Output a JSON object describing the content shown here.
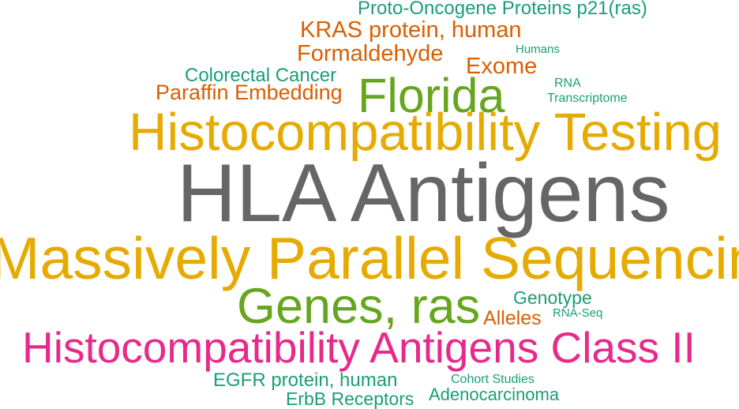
{
  "words": {
    "hla_antigens": "HLA Antigens",
    "massively_parallel_sequencing": "Massively Parallel Sequencing",
    "histocompatibility_testing": "Histocompatibility Testing",
    "histocompatibility_antigens_class_ii": "Histocompatibility Antigens Class II",
    "genes_ras": "Genes, ras",
    "florida": "Florida",
    "kras_protein_human": "KRAS protein, human",
    "formaldehyde": "Formaldehyde",
    "exome": "Exome",
    "paraffin_embedding": "Paraffin Embedding",
    "colorectal_cancer": "Colorectal Cancer",
    "proto_oncogene_proteins": "Proto-Oncogene Proteins p21(ras)",
    "alleles": "Alleles",
    "genotype": "Genotype",
    "egfr_protein_human": "EGFR protein, human",
    "erbb_receptors": "ErbB Receptors",
    "adenocarcinoma": "Adenocarcinoma",
    "cohort_studies": "Cohort Studies",
    "humans": "Humans",
    "rna": "RNA",
    "transcriptome": "Transcriptome",
    "rna_seq": "RNA-Seq"
  },
  "colors": {
    "gray": "#666666",
    "gold": "#e6ab02",
    "green": "#66a61e",
    "teal": "#1b9e77",
    "orange": "#d95f02",
    "pink": "#e7298a"
  }
}
